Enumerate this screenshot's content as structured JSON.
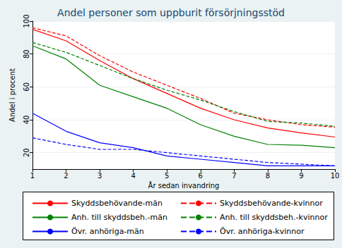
{
  "chart_data": {
    "type": "line",
    "title": "Andel personer som uppburit försörjningsstöd",
    "x_label": "År sedan invandring",
    "y_label": "Andel i procent",
    "x": [
      1,
      2,
      3,
      4,
      5,
      6,
      7,
      8,
      9,
      10
    ],
    "xlim": [
      1,
      10
    ],
    "xticks": [
      1,
      2,
      3,
      4,
      5,
      6,
      7,
      8,
      9,
      10
    ],
    "ylim": [
      10,
      100
    ],
    "yticks": [
      20,
      40,
      60,
      80,
      100
    ],
    "grid": true,
    "legend": "bottom",
    "marker": "none",
    "series": [
      {
        "name": "Skyddsbehövande-män",
        "color": "#ff0000",
        "line_style": "solid",
        "values": [
          95,
          88,
          76,
          65,
          56,
          47,
          40,
          35,
          32,
          29.5
        ]
      },
      {
        "name": "Skyddsbehövande-kvinnor",
        "color": "#ff0000",
        "line_style": "dashed",
        "values": [
          96,
          91,
          79,
          69,
          61,
          53,
          44,
          40,
          37,
          35.5
        ]
      },
      {
        "name": "Anh. till skyddsbeh.-män",
        "color": "#008000",
        "line_style": "solid",
        "values": [
          85,
          77,
          61,
          54,
          47,
          37,
          30,
          25,
          24.5,
          23
        ]
      },
      {
        "name": "Anh. till skyddsbeh.-kvinnor",
        "color": "#008000",
        "line_style": "dashed",
        "values": [
          87,
          81,
          73,
          65,
          58,
          52,
          45,
          39,
          38,
          36
        ]
      },
      {
        "name": "Övr. anhöriga-män",
        "color": "#0000ff",
        "line_style": "solid",
        "values": [
          44,
          33,
          26,
          23,
          18,
          16,
          14,
          12,
          12,
          12
        ]
      },
      {
        "name": "Övr. anhöriga-kvinnor",
        "color": "#0000ff",
        "line_style": "dashed",
        "values": [
          29,
          25,
          22,
          22,
          20,
          18,
          16,
          14,
          13,
          12
        ]
      }
    ]
  }
}
